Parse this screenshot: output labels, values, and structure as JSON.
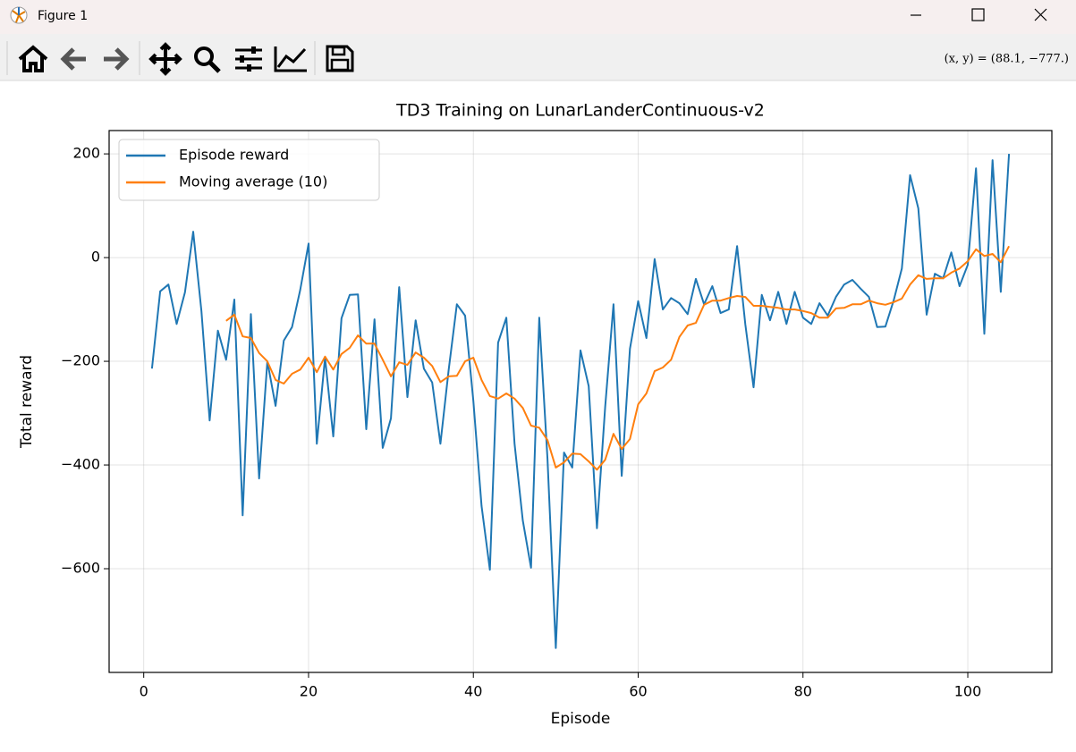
{
  "window": {
    "title": "Figure 1",
    "status": "(x, y) = (88.1, −777.)"
  },
  "chart_data": {
    "type": "line",
    "title": "TD3 Training on LunarLanderContinuous-v2",
    "x_label": "Episode",
    "y_label": "Total reward",
    "x": [
      1,
      2,
      3,
      4,
      5,
      6,
      7,
      8,
      9,
      10,
      11,
      12,
      13,
      14,
      15,
      16,
      17,
      18,
      19,
      20,
      21,
      22,
      23,
      24,
      25,
      26,
      27,
      28,
      29,
      30,
      31,
      32,
      33,
      34,
      35,
      36,
      37,
      38,
      39,
      40,
      41,
      42,
      43,
      44,
      45,
      46,
      47,
      48,
      49,
      50,
      51,
      52,
      53,
      54,
      55,
      56,
      57,
      58,
      59,
      60,
      61,
      62,
      63,
      64,
      65,
      66,
      67,
      68,
      69,
      70,
      71,
      72,
      73,
      74,
      75,
      76,
      77,
      78,
      79,
      80,
      81,
      82,
      83,
      84,
      85,
      86,
      87,
      88,
      89,
      90,
      91,
      92,
      93,
      94,
      95,
      96,
      97,
      98,
      99,
      100,
      101,
      102,
      103,
      104,
      105
    ],
    "series": [
      {
        "name": "Episode reward",
        "color": "#1f77b4",
        "values": [
          -214,
          -65,
          -52,
          -128,
          -67,
          50,
          -103,
          -314,
          -141,
          -197,
          -81,
          -497,
          -109,
          -426,
          -200,
          -286,
          -160,
          -134,
          -62,
          27,
          -359,
          -193,
          -345,
          -117,
          -72,
          -71,
          -331,
          -119,
          -367,
          -310,
          -57,
          -269,
          -121,
          -214,
          -241,
          -359,
          -217,
          -90,
          -112,
          -276,
          -479,
          -602,
          -164,
          -116,
          -359,
          -507,
          -598,
          -116,
          -388,
          -753,
          -376,
          -405,
          -179,
          -248,
          -522,
          -288,
          -90,
          -421,
          -176,
          -84,
          -155,
          -3,
          -100,
          -78,
          -88,
          -109,
          -41,
          -90,
          -55,
          -107,
          -100,
          22,
          -129,
          -250,
          -72,
          -121,
          -66,
          -128,
          -66,
          -116,
          -128,
          -88,
          -112,
          -76,
          -52,
          -43,
          -60,
          -76,
          -134,
          -133,
          -83,
          -21,
          159,
          95,
          -110,
          -31,
          -40,
          10,
          -55,
          -14,
          172,
          -147,
          188,
          -66,
          200
        ]
      },
      {
        "name": "Moving average (10)",
        "color": "#ff7f0e",
        "values": [
          null,
          null,
          null,
          null,
          null,
          null,
          null,
          null,
          null,
          -122,
          -110,
          -152,
          -155,
          -184,
          -200,
          -236,
          -243,
          -224,
          -216,
          -193,
          -221,
          -191,
          -216,
          -186,
          -174,
          -150,
          -166,
          -166,
          -197,
          -229,
          -202,
          -207,
          -183,
          -193,
          -209,
          -240,
          -229,
          -228,
          -200,
          -193,
          -236,
          -267,
          -272,
          -262,
          -272,
          -290,
          -324,
          -328,
          -352,
          -405,
          -395,
          -378,
          -379,
          -393,
          -409,
          -390,
          -340,
          -369,
          -350,
          -283,
          -262,
          -219,
          -212,
          -197,
          -153,
          -131,
          -126,
          -91,
          -83,
          -83,
          -78,
          -74,
          -76,
          -93,
          -93,
          -95,
          -97,
          -100,
          -100,
          -103,
          -107,
          -116,
          -116,
          -98,
          -97,
          -90,
          -90,
          -83,
          -88,
          -91,
          -86,
          -79,
          -52,
          -34,
          -41,
          -40,
          -40,
          -29,
          -21,
          -7,
          16,
          3,
          7,
          -9,
          22
        ]
      }
    ],
    "xlim": [
      -4.2,
      110.2
    ],
    "ylim": [
      -800,
      245
    ],
    "xticks": [
      0,
      20,
      40,
      60,
      80,
      100
    ],
    "yticks": [
      {
        "value": -600,
        "label": "−600"
      },
      {
        "value": -400,
        "label": "−400"
      },
      {
        "value": -200,
        "label": "−200"
      },
      0,
      200
    ],
    "grid": true,
    "legend": "upper left"
  }
}
